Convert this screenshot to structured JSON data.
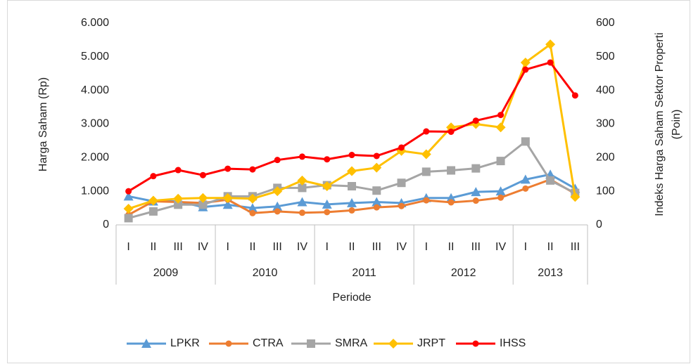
{
  "chart_data": {
    "type": "line",
    "ylabel": "Harga Saham (Rp)",
    "y2label": [
      "Indeks Harga Saham Sektor Properti",
      "(Poin)"
    ],
    "xlabel": "Periode",
    "category_groups": [
      {
        "label": "2009",
        "categories": [
          "I",
          "II",
          "III",
          "IV"
        ]
      },
      {
        "label": "2010",
        "categories": [
          "I",
          "II",
          "III",
          "IV"
        ]
      },
      {
        "label": "2011",
        "categories": [
          "I",
          "II",
          "III",
          "IV"
        ]
      },
      {
        "label": "2012",
        "categories": [
          "I",
          "II",
          "III",
          "IV"
        ]
      },
      {
        "label": "2013",
        "categories": [
          "I",
          "II",
          "III"
        ]
      }
    ],
    "ylim": [
      0,
      6000
    ],
    "yticks": [
      0,
      {
        "value": 1000,
        "label": "1.000"
      },
      {
        "value": 2000,
        "label": "2.000"
      },
      {
        "value": 3000,
        "label": "3.000"
      },
      {
        "value": 4000,
        "label": "4.000"
      },
      {
        "value": 5000,
        "label": "5.000"
      },
      {
        "value": 6000,
        "label": "6.000"
      }
    ],
    "y2lim": [
      0,
      600
    ],
    "y2ticks": [
      0,
      100,
      200,
      300,
      400,
      500,
      600
    ],
    "grid": false,
    "legend": "bottom",
    "series": [
      {
        "name": "LPKR",
        "color": "#5b9bd5",
        "marker": "triangle",
        "values": [
          850,
          700,
          700,
          530,
          600,
          500,
          550,
          680,
          610,
          650,
          680,
          650,
          800,
          800,
          980,
          1000,
          1350,
          1500,
          1080
        ]
      },
      {
        "name": "CTRA",
        "color": "#ed7d31",
        "marker": "circle",
        "values": [
          300,
          700,
          680,
          650,
          750,
          350,
          400,
          360,
          380,
          430,
          520,
          560,
          730,
          670,
          720,
          810,
          1080,
          1350,
          930
        ]
      },
      {
        "name": "SMRA",
        "color": "#a5a5a5",
        "marker": "square",
        "values": [
          200,
          400,
          600,
          600,
          850,
          850,
          1100,
          1100,
          1180,
          1150,
          1020,
          1250,
          1580,
          1620,
          1680,
          1900,
          2480,
          1320,
          950
        ]
      },
      {
        "name": "JRPT",
        "color": "#ffc000",
        "marker": "diamond",
        "values": [
          480,
          720,
          780,
          800,
          800,
          780,
          1000,
          1320,
          1150,
          1600,
          1700,
          2200,
          2100,
          2900,
          3000,
          2900,
          4830,
          5370,
          830
        ]
      },
      {
        "name": "IHSS",
        "color": "#ff0000",
        "marker": "circle",
        "axis": "y2",
        "values": [
          100,
          145,
          163,
          148,
          167,
          165,
          193,
          203,
          195,
          208,
          205,
          230,
          278,
          277,
          310,
          327,
          462,
          483,
          385
        ]
      }
    ]
  }
}
